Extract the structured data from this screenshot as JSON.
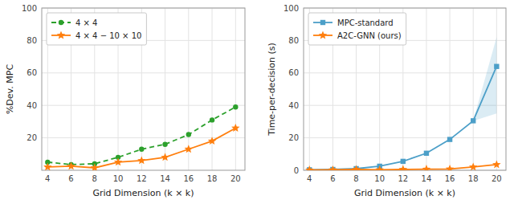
{
  "chart_data": [
    {
      "type": "line",
      "x": [
        4,
        6,
        8,
        10,
        12,
        14,
        16,
        18,
        20
      ],
      "xlabel": "Grid Dimension (k × k)",
      "ylabel": "%Dev. MPC",
      "xlim": [
        3.5,
        20.8
      ],
      "ylim": [
        0,
        100
      ],
      "xticks": [
        4,
        6,
        8,
        10,
        12,
        14,
        16,
        18,
        20
      ],
      "yticks": [
        20,
        40,
        60,
        80,
        100
      ],
      "grid": true,
      "legend": "upper left",
      "series": [
        {
          "name": "4 × 4",
          "color": "#2ca02c",
          "marker": "circle",
          "line_style": "dashed",
          "values": [
            5.0,
            3.5,
            4.0,
            8.0,
            13.0,
            16.0,
            22.0,
            31.0,
            39.0
          ]
        },
        {
          "name": "4 × 4 − 10 × 10",
          "color": "#ff7f0e",
          "marker": "star",
          "line_style": "solid",
          "values": [
            2.0,
            2.5,
            1.5,
            5.0,
            6.0,
            8.0,
            13.0,
            18.0,
            26.0
          ]
        }
      ]
    },
    {
      "type": "line",
      "x": [
        4,
        6,
        8,
        10,
        12,
        14,
        16,
        18,
        20
      ],
      "xlabel": "Grid Dimension (k × k)",
      "ylabel": "Time-per-decision (s)",
      "xlim": [
        3.5,
        20.8
      ],
      "ylim": [
        0,
        100
      ],
      "xticks": [
        4,
        6,
        8,
        10,
        12,
        14,
        16,
        18,
        20
      ],
      "yticks": [
        0,
        20,
        40,
        60,
        80,
        100
      ],
      "grid": true,
      "legend": "upper left",
      "series": [
        {
          "name": "MPC-standard",
          "color": "#4c9fc8",
          "marker": "square",
          "line_style": "solid",
          "values": [
            0.3,
            0.5,
            1.0,
            2.5,
            5.5,
            10.5,
            19.0,
            30.5,
            64.0
          ],
          "band_low": [
            0.3,
            0.5,
            1.0,
            2.5,
            5.5,
            10.5,
            19.0,
            30.5,
            35.0
          ],
          "band_high": [
            0.3,
            0.5,
            1.0,
            2.5,
            5.5,
            10.5,
            19.0,
            30.5,
            82.0
          ]
        },
        {
          "name": "A2C-GNN (ours)",
          "color": "#ff7f0e",
          "marker": "star",
          "line_style": "solid",
          "values": [
            0.2,
            0.3,
            0.5,
            0.3,
            0.5,
            0.7,
            0.8,
            2.0,
            3.5
          ]
        }
      ]
    }
  ]
}
